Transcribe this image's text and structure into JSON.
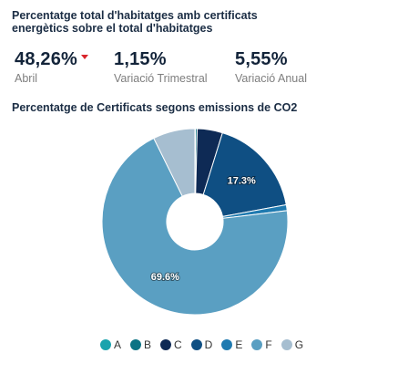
{
  "header": {
    "title": "Percentatge total d'habitatges amb certificats energètics sobre el total d'habitatges"
  },
  "kpis": [
    {
      "value": "48,26%",
      "label": "Abril",
      "trend": "down",
      "trend_color": "#d9252b"
    },
    {
      "value": "1,15%",
      "label": "Variació Trimestral"
    },
    {
      "value": "5,55%",
      "label": "Variació Anual"
    }
  ],
  "chart_data": {
    "type": "pie",
    "donut": true,
    "title": "Percentatge de Certificats segons emissions de CO2",
    "categories": [
      "A",
      "B",
      "C",
      "D",
      "E",
      "F",
      "G"
    ],
    "values": [
      0.1,
      0.3,
      4.4,
      17.3,
      1.0,
      69.6,
      7.3
    ],
    "colors": [
      "#1aa3ad",
      "#0b7384",
      "#0e2a55",
      "#0f4f83",
      "#1f7ab0",
      "#5a9fc2",
      "#a6bed0"
    ],
    "data_labels": [
      {
        "category": "D",
        "text": "17.3%"
      },
      {
        "category": "F",
        "text": "69.6%"
      }
    ],
    "start_angle_deg": 0,
    "legend_position": "bottom"
  }
}
